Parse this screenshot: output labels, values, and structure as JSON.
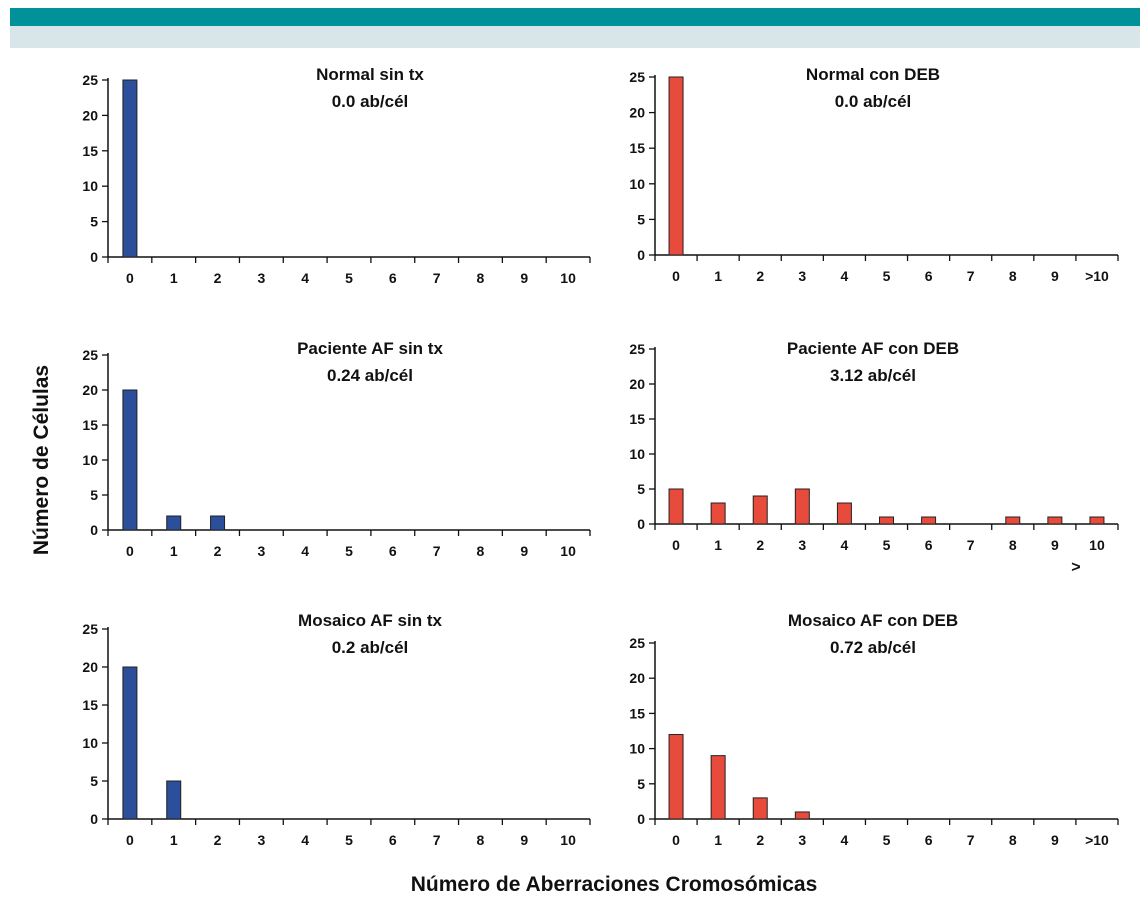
{
  "axis_titles": {
    "y": "Número de Células",
    "x": "Número de Aberraciones Cromosómicas"
  },
  "colors": {
    "header_band": "#009298",
    "header_subband": "#d8e6ea",
    "sin_tx_bars": "#2b4f9a",
    "con_deb_bars": "#e84a3c"
  },
  "chart_data": [
    {
      "type": "bar",
      "title": "Normal sin tx",
      "subtitle": "0.0 ab/cél",
      "color": "#2b4f9a",
      "categories": [
        "0",
        "1",
        "2",
        "3",
        "4",
        "5",
        "6",
        "7",
        "8",
        "9",
        "10"
      ],
      "values": [
        25,
        0,
        0,
        0,
        0,
        0,
        0,
        0,
        0,
        0,
        0
      ],
      "ylim": [
        0,
        25
      ],
      "yticks": [
        0,
        5,
        10,
        15,
        20,
        25
      ],
      "grid": false
    },
    {
      "type": "bar",
      "title": "Normal con DEB",
      "subtitle": "0.0 ab/cél",
      "color": "#e84a3c",
      "categories": [
        "0",
        "1",
        "2",
        "3",
        "4",
        "5",
        "6",
        "7",
        "8",
        "9",
        ">10"
      ],
      "values": [
        25,
        0,
        0,
        0,
        0,
        0,
        0,
        0,
        0,
        0,
        0
      ],
      "ylim": [
        0,
        25
      ],
      "yticks": [
        0,
        5,
        10,
        15,
        20,
        25
      ],
      "grid": false
    },
    {
      "type": "bar",
      "title": "Paciente AF sin tx",
      "subtitle": "0.24 ab/cél",
      "color": "#2b4f9a",
      "categories": [
        "0",
        "1",
        "2",
        "3",
        "4",
        "5",
        "6",
        "7",
        "8",
        "9",
        "10"
      ],
      "values": [
        20,
        2,
        2,
        0,
        0,
        0,
        0,
        0,
        0,
        0,
        0
      ],
      "ylim": [
        0,
        25
      ],
      "yticks": [
        0,
        5,
        10,
        15,
        20,
        25
      ],
      "grid": false
    },
    {
      "type": "bar",
      "title": "Paciente AF con DEB",
      "subtitle": "3.12 ab/cél",
      "color": "#e84a3c",
      "categories": [
        "0",
        "1",
        "2",
        "3",
        "4",
        "5",
        "6",
        "7",
        "8",
        "9",
        "10"
      ],
      "values": [
        5,
        3,
        4,
        5,
        3,
        1,
        1,
        0,
        1,
        1,
        1
      ],
      "ylim": [
        0,
        25
      ],
      "yticks": [
        0,
        5,
        10,
        15,
        20,
        25
      ],
      "grid": false,
      "annotation": ">"
    },
    {
      "type": "bar",
      "title": "Mosaico AF sin tx",
      "subtitle": "0.2 ab/cél",
      "color": "#2b4f9a",
      "categories": [
        "0",
        "1",
        "2",
        "3",
        "4",
        "5",
        "6",
        "7",
        "8",
        "9",
        "10"
      ],
      "values": [
        20,
        5,
        0,
        0,
        0,
        0,
        0,
        0,
        0,
        0,
        0
      ],
      "ylim": [
        0,
        25
      ],
      "yticks": [
        0,
        5,
        10,
        15,
        20,
        25
      ],
      "grid": false
    },
    {
      "type": "bar",
      "title": "Mosaico AF con DEB",
      "subtitle": "0.72 ab/cél",
      "color": "#e84a3c",
      "categories": [
        "0",
        "1",
        "2",
        "3",
        "4",
        "5",
        "6",
        "7",
        "8",
        "9",
        ">10"
      ],
      "values": [
        12,
        9,
        3,
        1,
        0,
        0,
        0,
        0,
        0,
        0,
        0
      ],
      "ylim": [
        0,
        25
      ],
      "yticks": [
        0,
        5,
        10,
        15,
        20,
        25
      ],
      "grid": false
    }
  ]
}
